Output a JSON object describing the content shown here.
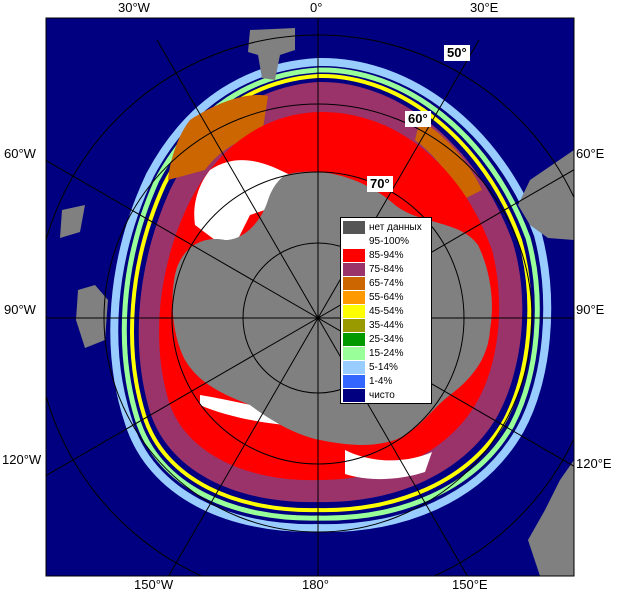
{
  "map": {
    "labels": {
      "top": [
        "30°W",
        "0°",
        "30°E"
      ],
      "bottom": [
        "150°W",
        "180°",
        "150°E"
      ],
      "left": [
        "60°W",
        "90°W",
        "120°W"
      ],
      "right": [
        "60°E",
        "90°E",
        "120°E"
      ]
    },
    "latitude_badges": [
      "50°",
      "60°",
      "70°"
    ],
    "colors": {
      "ocean": "#000080",
      "land": "#808080",
      "grid": "#000000"
    }
  },
  "legend": {
    "items": [
      {
        "label": "нет данных",
        "color": "#555555"
      },
      {
        "label": "95-100%",
        "color": "#ffffff"
      },
      {
        "label": "85-94%",
        "color": "#ff0000"
      },
      {
        "label": "75-84%",
        "color": "#99336a"
      },
      {
        "label": "65-74%",
        "color": "#cc6600"
      },
      {
        "label": "55-64%",
        "color": "#ff9900"
      },
      {
        "label": "45-54%",
        "color": "#ffff00"
      },
      {
        "label": "35-44%",
        "color": "#999900"
      },
      {
        "label": "25-34%",
        "color": "#009900"
      },
      {
        "label": "15-24%",
        "color": "#99ff99"
      },
      {
        "label": "5-14%",
        "color": "#99ccff"
      },
      {
        "label": "1-4%",
        "color": "#3366ff"
      },
      {
        "label": "чисто",
        "color": "#000080"
      }
    ]
  }
}
